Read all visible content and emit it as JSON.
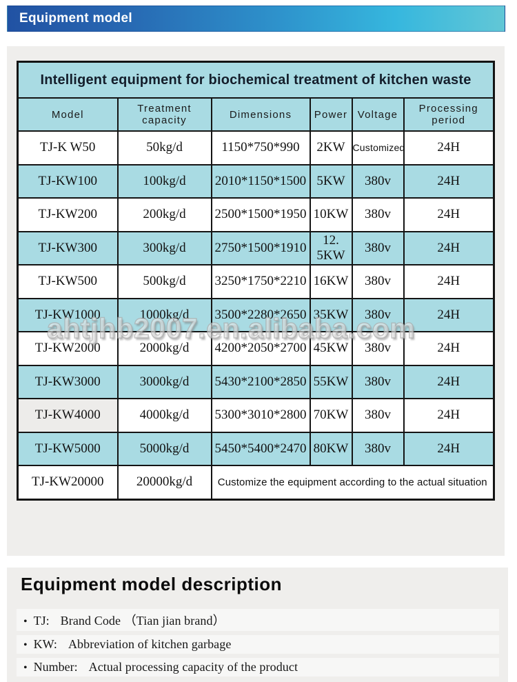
{
  "banner": {
    "title": "Equipment model"
  },
  "watermark": {
    "text": "ahtjhb2007.en.alibaba.com"
  },
  "table": {
    "title": "Intelligent equipment for biochemical treatment of kitchen waste",
    "columns": [
      "Model",
      "Treatment capacity",
      "Dimensions",
      "Power",
      "Voltage",
      "Processing period"
    ],
    "rows": [
      {
        "model": "TJ-K W50",
        "capacity": "50kg/d",
        "dimensions": "1150*750*990",
        "power": "2KW",
        "voltage": "Customized",
        "period": "24H"
      },
      {
        "model": "TJ-KW100",
        "capacity": "100kg/d",
        "dimensions": "2010*1150*1500",
        "power": "5KW",
        "voltage": "380v",
        "period": "24H"
      },
      {
        "model": "TJ-KW200",
        "capacity": "200kg/d",
        "dimensions": "2500*1500*1950",
        "power": "10KW",
        "voltage": "380v",
        "period": "24H"
      },
      {
        "model": "TJ-KW300",
        "capacity": "300kg/d",
        "dimensions": "2750*1500*1910",
        "power": "12. 5KW",
        "voltage": "380v",
        "period": "24H"
      },
      {
        "model": "TJ-KW500",
        "capacity": "500kg/d",
        "dimensions": "3250*1750*2210",
        "power": "16KW",
        "voltage": "380v",
        "period": "24H"
      },
      {
        "model": "TJ-KW1000",
        "capacity": "1000kg/d",
        "dimensions": "3500*2280*2650",
        "power": "35KW",
        "voltage": "380v",
        "period": "24H"
      },
      {
        "model": "TJ-KW2000",
        "capacity": "2000kg/d",
        "dimensions": "4200*2050*2700",
        "power": "45KW",
        "voltage": "380v",
        "period": "24H"
      },
      {
        "model": "TJ-KW3000",
        "capacity": "3000kg/d",
        "dimensions": "5430*2100*2850",
        "power": "55KW",
        "voltage": "380v",
        "period": "24H"
      },
      {
        "model": "TJ-KW4000",
        "capacity": "4000kg/d",
        "dimensions": "5300*3010*2800",
        "power": "70KW",
        "voltage": "380v",
        "period": "24H"
      },
      {
        "model": "TJ-KW5000",
        "capacity": "5000kg/d",
        "dimensions": "5450*5400*2470",
        "power": "80KW",
        "voltage": "380v",
        "period": "24H"
      },
      {
        "model": "TJ-KW20000",
        "capacity": "20000kg/d",
        "note": "Customize the equipment according to the actual situation"
      }
    ]
  },
  "description": {
    "heading": "Equipment model description",
    "bullet": "•",
    "items": [
      {
        "term": "TJ:",
        "definition": "Brand Code （Tian jian brand）"
      },
      {
        "term": "KW:",
        "definition": "Abbreviation of kitchen garbage"
      },
      {
        "term": "Number:",
        "definition": "Actual processing capacity of the product"
      }
    ]
  },
  "colors": {
    "banner_gradient_left": "#2152a3",
    "banner_gradient_right": "#62c7d6",
    "row_highlight_cyan": "#a9dbe3",
    "panel_gray": "#efeeec",
    "table_border": "#141414"
  }
}
